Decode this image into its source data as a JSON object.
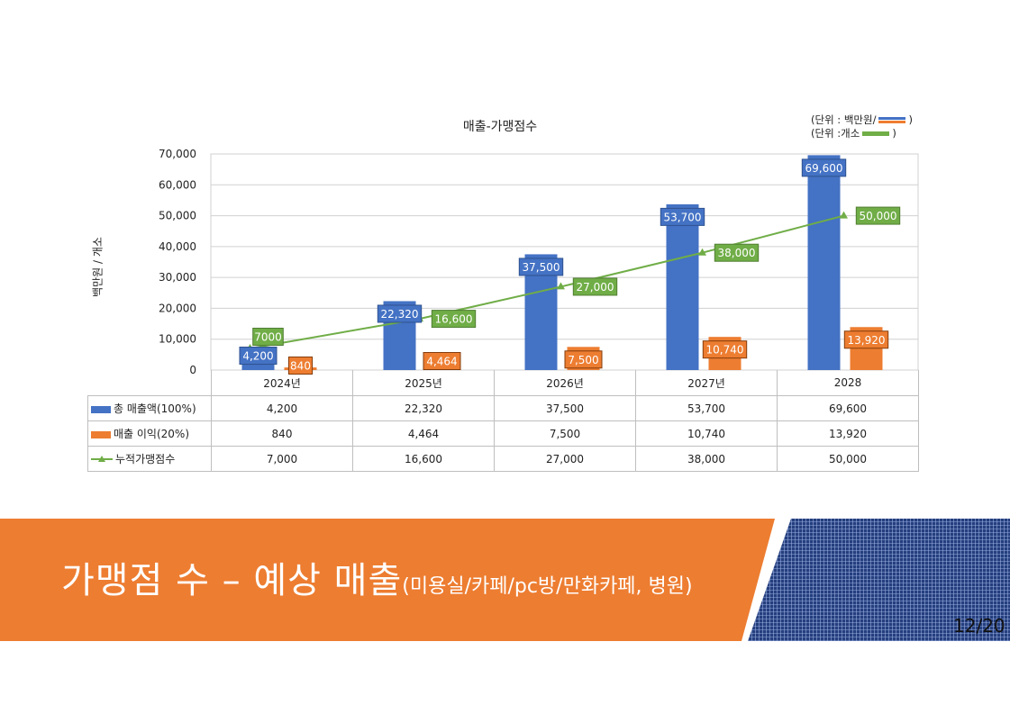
{
  "chart_data": {
    "type": "bar",
    "title": "매출-가맹점수",
    "ylabel": "백만원 / 개소",
    "ylim": [
      0,
      70000
    ],
    "y_ticks": [
      "0",
      "10,000",
      "20,000",
      "30,000",
      "40,000",
      "50,000",
      "60,000",
      "70,000"
    ],
    "categories": [
      "2024년",
      "2025년",
      "2026년",
      "2027년",
      "2028"
    ],
    "series": [
      {
        "name": "총 매출액(100%)",
        "kind": "bar",
        "color": "#4472c4",
        "values": [
          4200,
          22320,
          37500,
          53700,
          69600
        ],
        "labels": [
          "4,200",
          "22,320",
          "37,500",
          "53,700",
          "69,600"
        ]
      },
      {
        "name": "매출 이익(20%)",
        "kind": "bar",
        "color": "#ed7d31",
        "values": [
          840,
          4464,
          7500,
          10740,
          13920
        ],
        "labels": [
          "840",
          "4,464",
          "7,500",
          "10,740",
          "13,920"
        ]
      },
      {
        "name": "누적가맹점수",
        "kind": "line",
        "color": "#70ad47",
        "values": [
          7000,
          16600,
          27000,
          38000,
          50000
        ],
        "labels": [
          "7,000",
          "16,600",
          "27,000",
          "38,000",
          "50,000"
        ],
        "label_override_first": "7000"
      }
    ],
    "grid": true,
    "legend": "data-table"
  },
  "unit_legend": {
    "row1_text": "(단위 : 백만원/",
    "row1_close": ")",
    "row2_text": "(단위 :개소",
    "row2_close": ")"
  },
  "banner": {
    "title_main": "가맹점 수 – 예상 매출",
    "title_sub": "(미용실/카페/pc방/만화카페, 병원)",
    "color": "#ed7d31"
  },
  "page_number": "12/20"
}
